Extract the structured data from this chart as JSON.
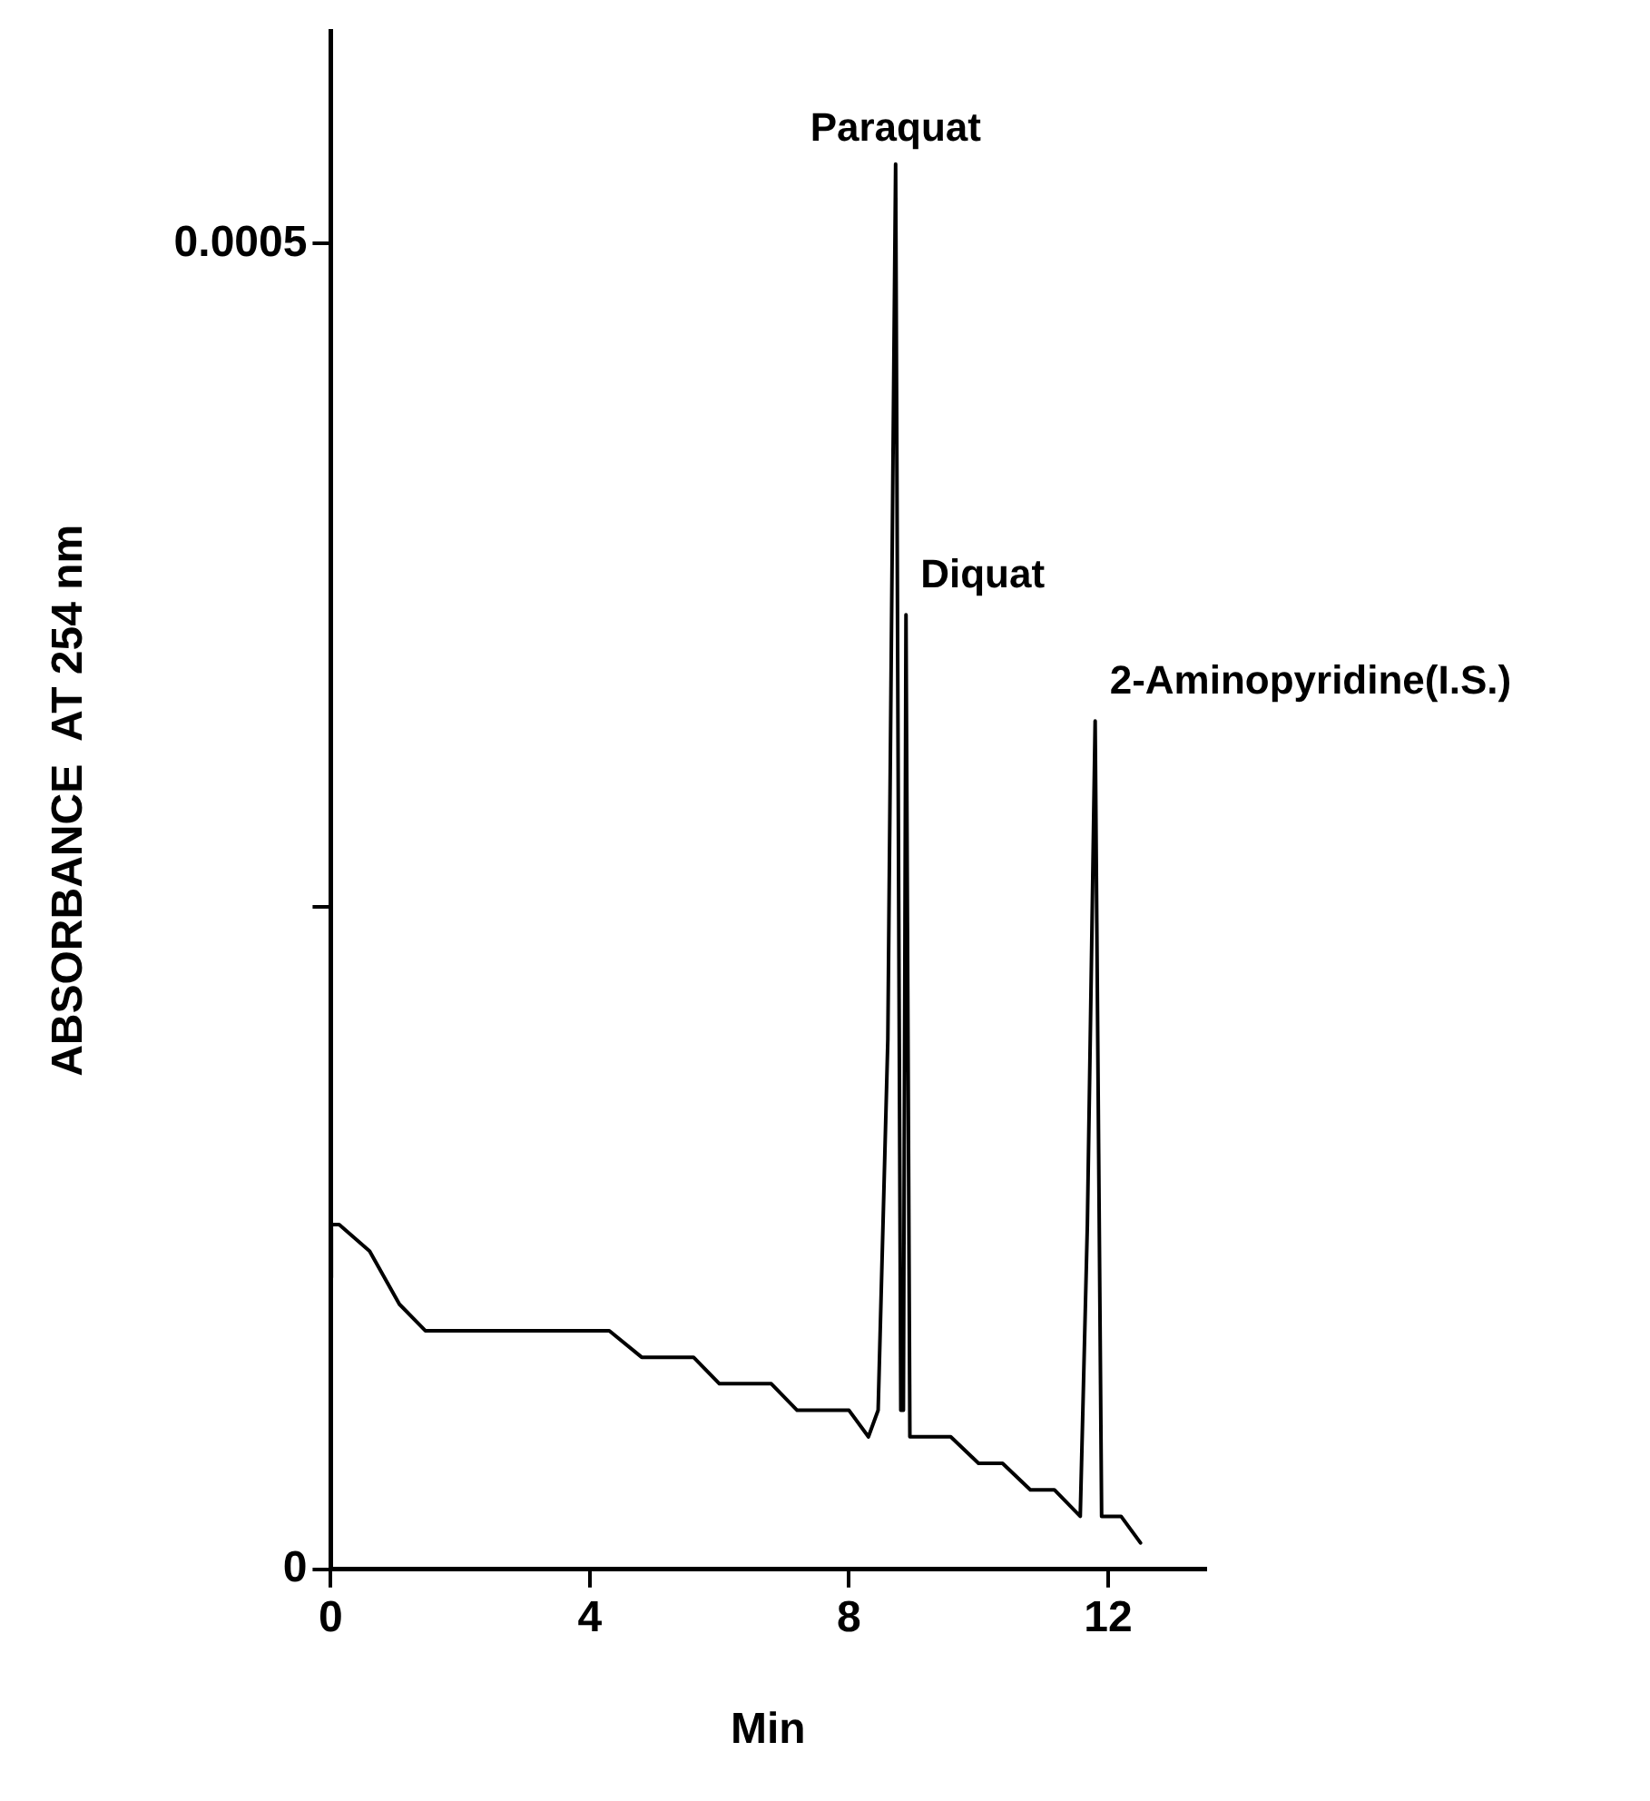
{
  "chart_data": {
    "type": "line",
    "xlabel": "Min",
    "ylabel": "ABSORBANCE  AT 254 nm",
    "x": [
      0,
      0.01,
      0.13,
      0.6,
      1.06,
      1.46,
      1.8,
      2.13,
      2.66,
      3.2,
      3.7,
      4.3,
      4.8,
      5.2,
      5.6,
      6.0,
      6.4,
      6.8,
      7.2,
      7.6,
      8.0,
      8.3,
      8.45,
      8.6,
      8.72,
      8.8,
      8.84,
      8.88,
      8.94,
      9.3,
      9.57,
      10.0,
      10.37,
      10.8,
      11.17,
      11.57,
      11.68,
      11.8,
      11.9,
      12.2,
      12.5
    ],
    "values": [
      0.00011,
      0.00013,
      0.00013,
      0.00012,
      0.0001,
      9e-05,
      9e-05,
      9e-05,
      9e-05,
      9e-05,
      9e-05,
      9e-05,
      8e-05,
      8e-05,
      8e-05,
      7e-05,
      7e-05,
      7e-05,
      6e-05,
      6e-05,
      6e-05,
      5e-05,
      6e-05,
      0.0002,
      0.00053,
      6e-05,
      6e-05,
      0.00036,
      5e-05,
      5e-05,
      5e-05,
      4e-05,
      4e-05,
      3e-05,
      3e-05,
      2e-05,
      0.00013,
      0.00032,
      2e-05,
      2e-05,
      1e-05
    ],
    "color": "#000000",
    "marker": "none",
    "line_style": "solid",
    "grid": false,
    "xlim": [
      0,
      13.5
    ],
    "xticks": [
      0,
      4,
      8,
      12
    ],
    "ylim": [
      0,
      0.00058
    ],
    "yticks": [
      0,
      {
        "value": 0.00025,
        "label": null
      },
      0.0005
    ],
    "annotations": [
      {
        "text": "Paraquat",
        "x": 8.72,
        "y": 0.00053
      },
      {
        "text": "Diquat",
        "x": 8.88,
        "y": 0.00036
      },
      {
        "text": "2-Aminopyridine(I.S.)",
        "x": 11.8,
        "y": 0.00032
      }
    ]
  }
}
